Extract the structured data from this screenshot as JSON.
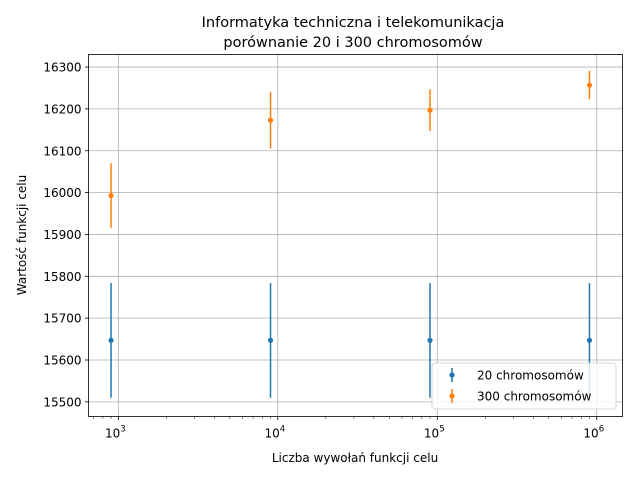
{
  "chart_data": {
    "type": "errorbar",
    "title": [
      "Informatyka techniczna i telekomunikacja",
      "porównanie 20 i 300 chromosomów"
    ],
    "xlabel": "Liczba wywołań funkcji celu",
    "ylabel": "Wartość funkcji celu",
    "xscale": "log",
    "xlim": [
      650,
      1450000
    ],
    "ylim": [
      15465,
      16330
    ],
    "xticks": [
      {
        "value": 1000,
        "base": "10",
        "exp": "3"
      },
      {
        "value": 10000,
        "base": "10",
        "exp": "4"
      },
      {
        "value": 100000,
        "base": "10",
        "exp": "5"
      },
      {
        "value": 1000000,
        "base": "10",
        "exp": "6"
      }
    ],
    "yticks": [
      15500,
      15600,
      15700,
      15800,
      15900,
      16000,
      16100,
      16200,
      16300
    ],
    "grid": true,
    "legend_position": "lower right",
    "series": [
      {
        "name": "20 chromosomów",
        "color": "#1f77b4",
        "points": [
          {
            "x": 900,
            "y": 15647,
            "err": 137
          },
          {
            "x": 9000,
            "y": 15647,
            "err": 137
          },
          {
            "x": 90000,
            "y": 15647,
            "err": 137
          },
          {
            "x": 900000,
            "y": 15647,
            "err": 137
          }
        ]
      },
      {
        "name": "300 chromosomów",
        "color": "#ff7f0e",
        "points": [
          {
            "x": 900,
            "y": 15993,
            "err": 77
          },
          {
            "x": 9000,
            "y": 16173,
            "err": 68
          },
          {
            "x": 90000,
            "y": 16197,
            "err": 50
          },
          {
            "x": 900000,
            "y": 16257,
            "err": 34
          }
        ]
      }
    ]
  }
}
